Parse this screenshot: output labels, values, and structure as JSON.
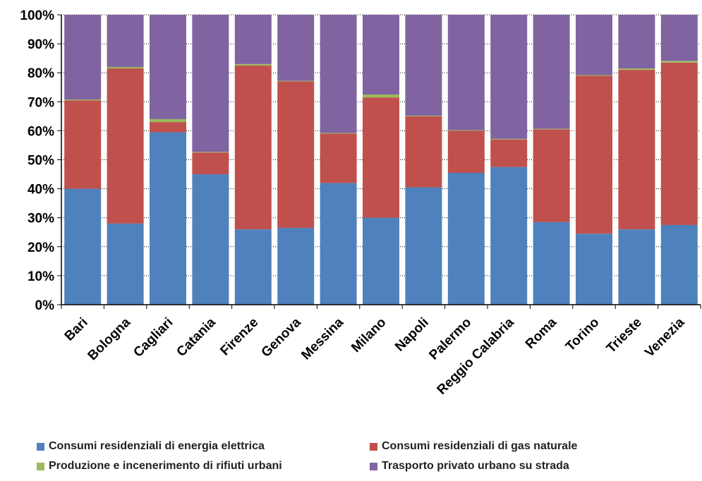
{
  "chart_data": {
    "type": "bar",
    "stacked": true,
    "percent": true,
    "categories": [
      "Bari",
      "Bologna",
      "Cagliari",
      "Catania",
      "Firenze",
      "Genova",
      "Messina",
      "Milano",
      "Napoli",
      "Palermo",
      "Reggio Calabria",
      "Roma",
      "Torino",
      "Trieste",
      "Venezia"
    ],
    "series": [
      {
        "name": "Consumi residenziali di energia elettrica",
        "color": "#4F81BD",
        "values": [
          40.0,
          28.0,
          59.5,
          45.0,
          26.0,
          26.5,
          42.0,
          30.0,
          40.5,
          45.5,
          47.5,
          28.5,
          24.5,
          26.0,
          27.5
        ]
      },
      {
        "name": "Consumi residenziali di gas naturale",
        "color": "#C0504D",
        "values": [
          30.5,
          53.5,
          3.5,
          7.5,
          56.5,
          50.5,
          17.0,
          41.5,
          24.5,
          14.5,
          9.5,
          32.0,
          54.5,
          55.0,
          56.0
        ]
      },
      {
        "name": "Produzione e incenerimento di rifiuti urbani",
        "color": "#9BBB59",
        "values": [
          0.3,
          0.5,
          1.0,
          0.2,
          0.5,
          0.2,
          0.2,
          1.0,
          0.2,
          0.2,
          0.2,
          0.2,
          0.2,
          0.5,
          0.6
        ]
      },
      {
        "name": "Trasporto privato urbano su strada",
        "color": "#8064A2",
        "values": [
          29.2,
          18.0,
          36.0,
          47.3,
          17.0,
          22.8,
          40.8,
          27.5,
          34.8,
          39.8,
          42.8,
          39.3,
          20.8,
          18.5,
          15.9
        ]
      }
    ],
    "yticks": [
      "0%",
      "10%",
      "20%",
      "30%",
      "40%",
      "50%",
      "60%",
      "70%",
      "80%",
      "90%",
      "100%"
    ],
    "ylim": [
      0,
      100
    ],
    "title": "",
    "xlabel": "",
    "ylabel": "",
    "grid": true,
    "legend_position": "bottom"
  }
}
